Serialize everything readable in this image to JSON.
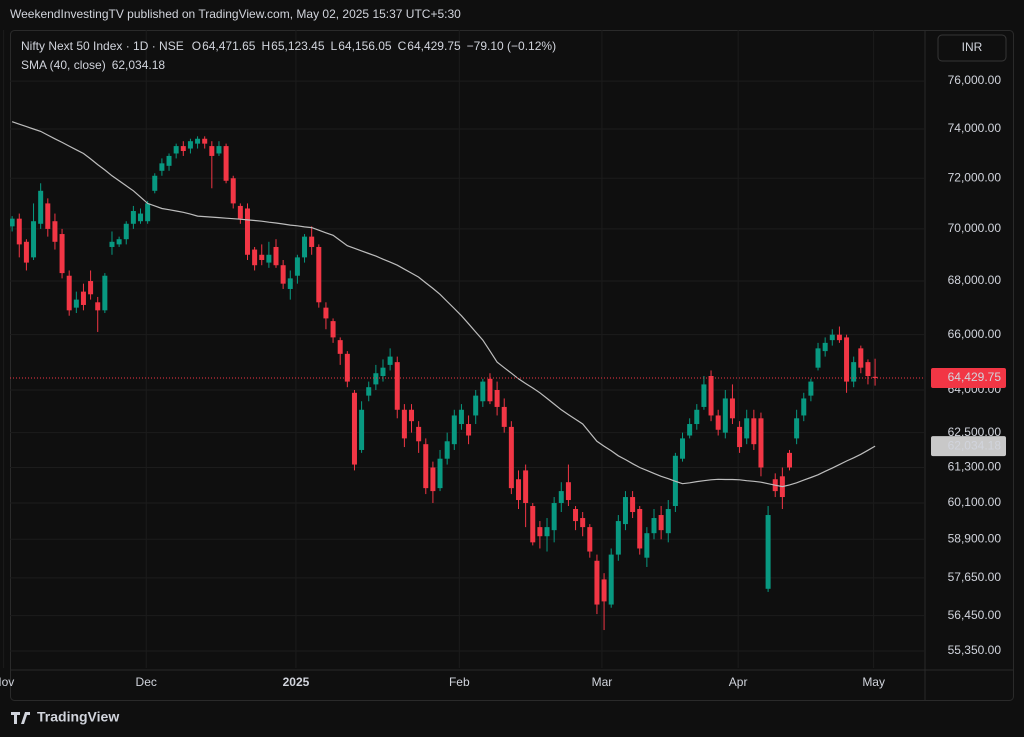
{
  "header": {
    "published": "WeekendInvestingTV published on TradingView.com, May 02, 2025 15:37 UTC+5:30"
  },
  "footer": {
    "brand": "TradingView"
  },
  "chart_data": {
    "type": "candlestick",
    "title": "Nifty Next 50 Index · 1D · NSE",
    "ohlc_legend": [
      {
        "key": "O",
        "label": "64,471.65"
      },
      {
        "key": "H",
        "label": "65,123.45"
      },
      {
        "key": "L",
        "label": "64,156.05"
      },
      {
        "key": "C",
        "label": "64,429.75"
      }
    ],
    "change": "−79.10 (−0.12%)",
    "currency": "INR",
    "up_color": "#089981",
    "down_color": "#f23645",
    "candles": {
      "open": [
        70100,
        70400,
        69500,
        68900,
        70200,
        71000,
        70300,
        69800,
        68200,
        67000,
        67600,
        68000,
        67200,
        66900,
        69300,
        69400,
        69600,
        70200,
        70300,
        70300,
        71500,
        72300,
        72500,
        73000,
        73300,
        73200,
        73400,
        73600,
        73300,
        73000,
        73300,
        72000,
        70900,
        70800,
        69200,
        69000,
        68700,
        69300,
        68600,
        67700,
        68200,
        68900,
        69700,
        69300,
        67000,
        66500,
        65800,
        65300,
        63900,
        61900,
        63800,
        64200,
        64500,
        64900,
        65000,
        63300,
        63300,
        62700,
        62100,
        61300,
        60600,
        61600,
        62100,
        62800,
        62800,
        63100,
        63600,
        64400,
        64000,
        63400,
        62700,
        60900,
        61200,
        60000,
        59300,
        59000,
        59200,
        60100,
        60800,
        59900,
        59600,
        59300,
        58200,
        57600,
        56800,
        58400,
        59400,
        60300,
        59900,
        58300,
        59100,
        59700,
        59100,
        60000,
        61600,
        62400,
        62800,
        63400,
        64500,
        63100,
        62500,
        63700,
        62700,
        62300,
        63000,
        63000,
        57300,
        60900,
        61000,
        61800,
        62300,
        63100,
        63800,
        64800,
        65400,
        65800,
        66000,
        65900,
        64300,
        65500,
        65000,
        64471.65
      ],
      "high": [
        70500,
        70600,
        69600,
        71000,
        71800,
        71200,
        70600,
        70000,
        68400,
        67600,
        67900,
        68400,
        67400,
        68300,
        69900,
        69700,
        70300,
        70900,
        70800,
        71100,
        72200,
        72800,
        73000,
        73400,
        73500,
        73600,
        73700,
        73700,
        73500,
        73500,
        73400,
        72100,
        71000,
        71000,
        69300,
        69400,
        69500,
        69600,
        68800,
        68400,
        69000,
        69800,
        70100,
        69400,
        67200,
        66600,
        65900,
        65400,
        64000,
        63600,
        64300,
        64900,
        65100,
        65500,
        65200,
        63500,
        63500,
        62900,
        62300,
        61500,
        61900,
        62500,
        63300,
        63500,
        63100,
        64000,
        64400,
        64600,
        64300,
        63700,
        62900,
        61200,
        61400,
        60100,
        59500,
        59600,
        60300,
        60800,
        61400,
        60000,
        59800,
        59400,
        58400,
        57800,
        58600,
        59700,
        60500,
        60500,
        60000,
        59300,
        59900,
        60000,
        60200,
        61800,
        62500,
        63000,
        63500,
        64500,
        64700,
        63300,
        64000,
        64200,
        62900,
        63300,
        63300,
        63200,
        60000,
        61100,
        61300,
        61900,
        63300,
        63900,
        64400,
        65700,
        65900,
        66200,
        66300,
        66000,
        65200,
        65600,
        65100,
        65123.45
      ],
      "low": [
        69900,
        68900,
        68400,
        68800,
        70000,
        69700,
        69200,
        68100,
        66700,
        66800,
        66900,
        67300,
        66100,
        66800,
        69000,
        69300,
        69400,
        70000,
        70200,
        70200,
        71400,
        72100,
        72300,
        72800,
        72900,
        73000,
        73200,
        73200,
        71600,
        72900,
        71800,
        70800,
        70200,
        68800,
        68400,
        68600,
        68500,
        68500,
        67700,
        67300,
        67900,
        68700,
        69000,
        67000,
        66200,
        65700,
        64900,
        64100,
        61200,
        61800,
        63600,
        64000,
        64300,
        64700,
        63000,
        62000,
        62500,
        61800,
        60400,
        60100,
        60500,
        61400,
        61900,
        62600,
        62100,
        62800,
        63400,
        63500,
        63100,
        62500,
        60400,
        59900,
        59300,
        58700,
        58600,
        58500,
        58800,
        59800,
        60000,
        59200,
        59000,
        58300,
        56500,
        56000,
        56700,
        58200,
        59200,
        59600,
        58400,
        58000,
        58900,
        58900,
        58800,
        59800,
        61500,
        62300,
        62600,
        63300,
        62900,
        62400,
        62300,
        62800,
        61800,
        62100,
        61900,
        61000,
        57200,
        60300,
        59900,
        61200,
        62100,
        62900,
        63600,
        64700,
        65200,
        65600,
        65700,
        63900,
        64100,
        64600,
        64200,
        64156.05
      ],
      "close": [
        70400,
        69400,
        68700,
        70300,
        71500,
        70000,
        69500,
        68300,
        66900,
        67300,
        67100,
        67500,
        66900,
        68200,
        69500,
        69600,
        70200,
        70700,
        70600,
        71000,
        72100,
        72600,
        72900,
        73300,
        73100,
        73500,
        73600,
        73400,
        72900,
        73300,
        71900,
        71000,
        70400,
        69000,
        68600,
        68800,
        69000,
        68600,
        67900,
        68100,
        68900,
        69700,
        69300,
        67200,
        66600,
        65900,
        65300,
        64300,
        61400,
        63300,
        64100,
        64600,
        64800,
        65200,
        63300,
        62300,
        62900,
        62200,
        60600,
        60500,
        61600,
        62200,
        63100,
        63300,
        62400,
        63800,
        64300,
        63600,
        63400,
        62700,
        60600,
        60200,
        60100,
        58800,
        59000,
        59300,
        60100,
        60500,
        60200,
        59500,
        59300,
        58500,
        56800,
        56900,
        58400,
        59500,
        60300,
        59800,
        58600,
        59100,
        59600,
        59200,
        59900,
        61700,
        62300,
        62800,
        63300,
        64200,
        63100,
        62600,
        63700,
        63000,
        62000,
        63000,
        62100,
        61300,
        59700,
        60500,
        60300,
        61300,
        63000,
        63700,
        64300,
        65500,
        65700,
        66000,
        65800,
        64300,
        65000,
        64800,
        64500,
        64429.75
      ]
    },
    "last_price_label": "64,429.75",
    "sma": {
      "name": "SMA (40, close)",
      "color": "#bdbdbd",
      "value_label": "62,034.18",
      "values": [
        74300,
        74200,
        74100,
        74000,
        73900,
        73750,
        73600,
        73450,
        73300,
        73150,
        73000,
        72780,
        72550,
        72330,
        72100,
        71900,
        71700,
        71500,
        71250,
        71000,
        70900,
        70800,
        70750,
        70700,
        70650,
        70580,
        70500,
        70480,
        70460,
        70440,
        70420,
        70400,
        70380,
        70350,
        70330,
        70300,
        70260,
        70230,
        70190,
        70150,
        70120,
        70080,
        70050,
        69950,
        69850,
        69750,
        69550,
        69350,
        69250,
        69150,
        69050,
        68950,
        68830,
        68720,
        68600,
        68450,
        68300,
        68150,
        67930,
        67720,
        67500,
        67230,
        66970,
        66700,
        66400,
        66100,
        65800,
        65400,
        65000,
        64800,
        64600,
        64400,
        64230,
        64070,
        63900,
        63700,
        63500,
        63300,
        63130,
        62970,
        62800,
        62500,
        62200,
        62030,
        61870,
        61700,
        61570,
        61430,
        61300,
        61200,
        61100,
        61000,
        60920,
        60830,
        60750,
        60780,
        60820,
        60850,
        60880,
        60900,
        60890,
        60890,
        60880,
        60850,
        60830,
        60800,
        60750,
        60700,
        60650,
        60710,
        60780,
        60870,
        60960,
        61050,
        61170,
        61280,
        61400,
        61520,
        61630,
        61750,
        61890,
        62034.18
      ]
    },
    "xlim": [
      -0.3,
      128
    ],
    "xticks": [
      {
        "value": -1.2,
        "label": "Nov"
      },
      {
        "value": 18.8,
        "label": "Dec"
      },
      {
        "value": 39.8,
        "label": "2025"
      },
      {
        "value": 62.7,
        "label": "Feb"
      },
      {
        "value": 82.7,
        "label": "Mar"
      },
      {
        "value": 101.8,
        "label": "Apr"
      },
      {
        "value": 120.8,
        "label": "May"
      }
    ],
    "ylim": [
      54830,
      78190
    ],
    "log_scale": true,
    "grid": true,
    "yticks": [
      {
        "value": 76000,
        "label": "76,000.00"
      },
      {
        "value": 74000,
        "label": "74,000.00"
      },
      {
        "value": 72000,
        "label": "72,000.00"
      },
      {
        "value": 70000,
        "label": "70,000.00"
      },
      {
        "value": 68000,
        "label": "68,000.00"
      },
      {
        "value": 66000,
        "label": "66,000.00"
      },
      {
        "value": 64000,
        "label": "64,000.00"
      },
      {
        "value": 62500,
        "label": "62,500.00"
      },
      {
        "value": 61300,
        "label": "61,300.00"
      },
      {
        "value": 60100,
        "label": "60,100.00"
      },
      {
        "value": 58900,
        "label": "58,900.00"
      },
      {
        "value": 57650,
        "label": "57,650.00"
      },
      {
        "value": 56450,
        "label": "56,450.00"
      },
      {
        "value": 55350,
        "label": "55,350.00"
      }
    ]
  }
}
